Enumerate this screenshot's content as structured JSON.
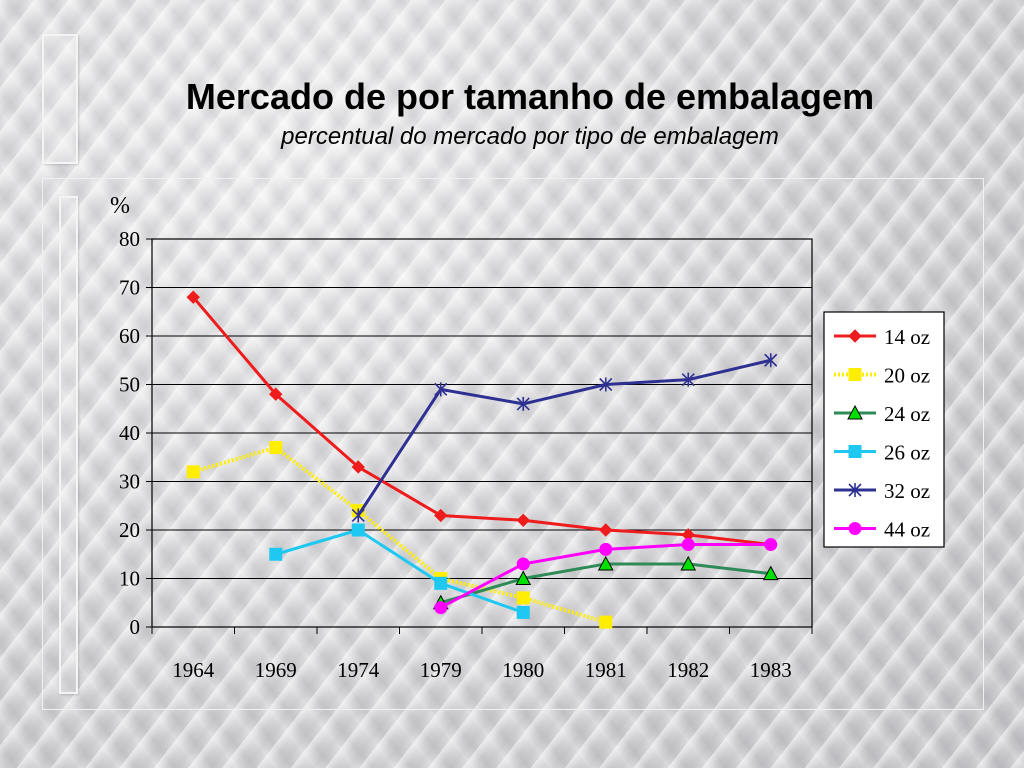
{
  "title": "Mercado de por tamanho de embalagem",
  "subtitle": "percentual do mercado por tipo de embalagem",
  "chart_data": {
    "type": "line",
    "ylabel": "%",
    "ylim": [
      0,
      80
    ],
    "yticks": [
      0,
      10,
      20,
      30,
      40,
      50,
      60,
      70,
      80
    ],
    "grid": true,
    "legend_position": "right",
    "categories": [
      "1964",
      "1969",
      "1974",
      "1979",
      "1980",
      "1981",
      "1982",
      "1983"
    ],
    "series": [
      {
        "name": "14 oz",
        "color": "#ee1c1c",
        "marker": "diamond",
        "values": [
          68,
          48,
          33,
          23,
          22,
          20,
          19,
          17
        ]
      },
      {
        "name": "20 oz",
        "color": "#ffee00",
        "marker": "square",
        "dashed": true,
        "values": [
          32,
          37,
          24,
          10,
          6,
          1,
          null,
          null
        ]
      },
      {
        "name": "24 oz",
        "color": "#2e8b57",
        "marker": "triangle",
        "values": [
          null,
          null,
          null,
          5,
          10,
          13,
          13,
          11
        ]
      },
      {
        "name": "26 oz",
        "color": "#1ec8f0",
        "marker": "square",
        "values": [
          null,
          15,
          20,
          9,
          3,
          null,
          null,
          null
        ]
      },
      {
        "name": "32 oz",
        "color": "#2e3192",
        "marker": "star",
        "values": [
          null,
          null,
          23,
          49,
          46,
          50,
          51,
          55
        ]
      },
      {
        "name": "44 oz",
        "color": "#ff00ff",
        "marker": "circle",
        "values": [
          null,
          null,
          null,
          4,
          13,
          16,
          17,
          17
        ]
      }
    ]
  }
}
